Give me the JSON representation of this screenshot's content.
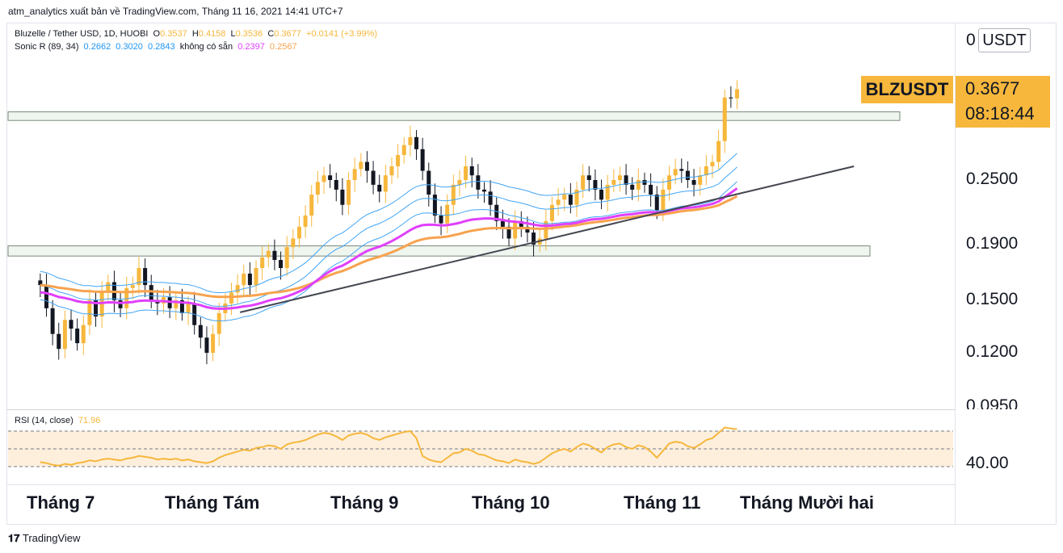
{
  "header": {
    "published_line": "atm_analytics xuất bản về TradingView.com, Tháng 11 16, 2021 14:41 UTC+7"
  },
  "legend": {
    "pair": "Bluzelle / Tether USD, 1D, HUOBI",
    "o_label": "O",
    "o_value": "0.3537",
    "h_label": "H",
    "h_value": "0.4158",
    "l_label": "L",
    "l_value": "0.3536",
    "c_label": "C",
    "c_value": "0.3677",
    "change": "+0.0141 (+3.99%)",
    "sonic_label": "Sonic R (89, 34)",
    "sonic_v1": "0.2662",
    "sonic_v2": "0.3020",
    "sonic_v3": "0.2843",
    "sonic_na": "không có sẵn",
    "sonic_v4": "0.2397",
    "sonic_v5": "0.2567",
    "rsi_label": "RSI (14, close)",
    "rsi_value": "71.96"
  },
  "price_axis": {
    "unit": "USDT",
    "labels": [
      "0",
      "0.2500",
      "0.1900",
      "0.1500",
      "0.1200",
      "0.0950"
    ],
    "rsi_label": "40.00"
  },
  "last_price": {
    "symbol": "BLZUSDT",
    "price": "0.3677",
    "countdown": "08:18:44"
  },
  "time_axis": {
    "labels": [
      "Tháng 7",
      "Tháng Tám",
      "Tháng 9",
      "Tháng 10",
      "Tháng 11",
      "Tháng Mười hai"
    ]
  },
  "footer": {
    "brand": "TradingView"
  },
  "colors": {
    "up": "#f6b73c",
    "down": "#131722",
    "ma89": "#f7a34f",
    "ma34": "#e040fb",
    "band": "#42a5f5",
    "rsi": "#f6b73c"
  },
  "chart_data": {
    "type": "candlestick",
    "title": "Bluzelle / Tether USD, 1D, HUOBI",
    "x_range": [
      "2021-06-26",
      "2021-11-16"
    ],
    "y_scale": "log",
    "support_zones": [
      [
        0.322,
        0.334
      ],
      [
        0.181,
        0.189
      ]
    ],
    "trendline": [
      {
        "date": "2021-08-06",
        "price": 0.1425
      },
      {
        "date": "2021-12-10",
        "price": 0.265
      }
    ],
    "closes": [
      0.16,
      0.145,
      0.13,
      0.122,
      0.138,
      0.133,
      0.125,
      0.135,
      0.15,
      0.14,
      0.155,
      0.162,
      0.15,
      0.145,
      0.158,
      0.16,
      0.172,
      0.16,
      0.15,
      0.148,
      0.152,
      0.145,
      0.15,
      0.142,
      0.148,
      0.135,
      0.128,
      0.12,
      0.13,
      0.142,
      0.148,
      0.155,
      0.16,
      0.168,
      0.16,
      0.172,
      0.18,
      0.185,
      0.178,
      0.172,
      0.188,
      0.195,
      0.205,
      0.215,
      0.235,
      0.248,
      0.255,
      0.25,
      0.24,
      0.225,
      0.25,
      0.262,
      0.27,
      0.26,
      0.245,
      0.238,
      0.255,
      0.265,
      0.278,
      0.29,
      0.3,
      0.285,
      0.26,
      0.235,
      0.215,
      0.208,
      0.225,
      0.245,
      0.25,
      0.265,
      0.255,
      0.24,
      0.238,
      0.225,
      0.21,
      0.205,
      0.195,
      0.21,
      0.205,
      0.2,
      0.19,
      0.195,
      0.21,
      0.225,
      0.23,
      0.235,
      0.225,
      0.24,
      0.255,
      0.25,
      0.24,
      0.23,
      0.245,
      0.25,
      0.255,
      0.245,
      0.24,
      0.25,
      0.245,
      0.235,
      0.22,
      0.24,
      0.255,
      0.262,
      0.26,
      0.25,
      0.245,
      0.255,
      0.265,
      0.27,
      0.295,
      0.355,
      0.3537,
      0.3677
    ],
    "rsi": {
      "values": [
        35,
        34,
        32,
        31,
        33,
        32,
        34,
        35,
        37,
        36,
        38,
        39,
        38,
        37,
        39,
        40,
        42,
        41,
        40,
        38,
        39,
        38,
        39,
        37,
        38,
        36,
        35,
        34,
        36,
        40,
        43,
        45,
        47,
        49,
        48,
        51,
        52,
        54,
        53,
        50,
        55,
        57,
        58,
        60,
        63,
        66,
        68,
        67,
        64,
        60,
        65,
        67,
        68,
        66,
        62,
        60,
        63,
        65,
        67,
        69,
        70,
        62,
        42,
        38,
        36,
        35,
        40,
        45,
        46,
        50,
        48,
        44,
        43,
        40,
        37,
        36,
        34,
        38,
        36,
        35,
        33,
        35,
        40,
        45,
        48,
        50,
        47,
        52,
        56,
        54,
        50,
        46,
        52,
        55,
        56,
        52,
        50,
        54,
        52,
        47,
        40,
        48,
        56,
        58,
        57,
        53,
        51,
        55,
        60,
        62,
        68,
        74,
        73,
        72
      ],
      "levels": [
        70,
        30
      ],
      "level_label": "40.00"
    }
  }
}
